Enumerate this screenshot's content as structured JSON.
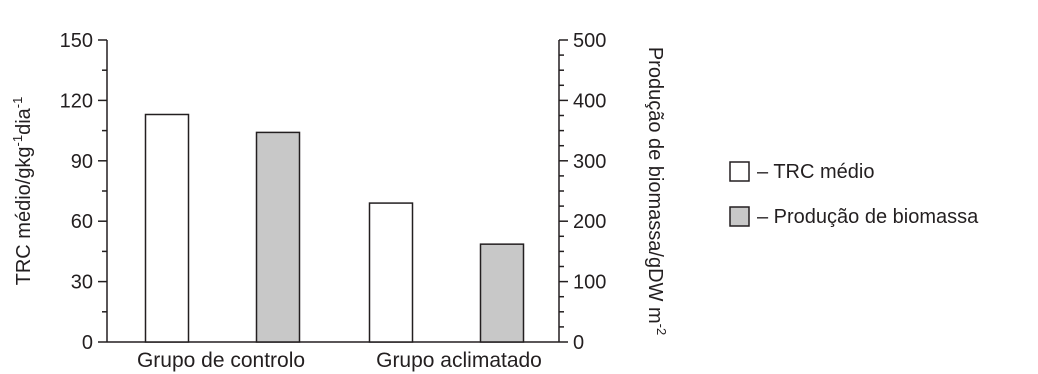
{
  "chart_data": {
    "type": "bar",
    "categories": [
      "Grupo de controlo",
      "Grupo aclimatado"
    ],
    "series": [
      {
        "name": "TRC médio",
        "axis": "left",
        "values": [
          113,
          69
        ],
        "color": "#ffffff"
      },
      {
        "name": "Produção de biomassa",
        "axis": "right",
        "values": [
          347,
          162
        ],
        "color": "#c8c8c8"
      }
    ],
    "y_left": {
      "label_main": "TRC médio/gkg",
      "label_sup1": "-1",
      "label_mid": "dia",
      "label_sup2": "-1",
      "ylim": [
        0,
        150
      ],
      "ticks": [
        "0",
        "30",
        "60",
        "90",
        "120",
        "150"
      ]
    },
    "y_right": {
      "label_main": "Produção de biomassa/gDW m",
      "label_sup": "-2",
      "ylim": [
        0,
        500
      ],
      "ticks": [
        "0",
        "100",
        "200",
        "300",
        "400",
        "500"
      ]
    },
    "legend": {
      "placement": "right",
      "items": [
        {
          "label": "– TRC médio",
          "color": "#ffffff"
        },
        {
          "label": "– Produção de biomassa",
          "color": "#c8c8c8"
        }
      ]
    },
    "grid": false,
    "stroke_color": "#231f20"
  }
}
